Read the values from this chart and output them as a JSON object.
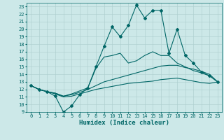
{
  "xlabel": "Humidex (Indice chaleur)",
  "bg_color": "#cce8e8",
  "grid_color": "#aacccc",
  "line_color": "#006666",
  "xlim": [
    -0.5,
    23.5
  ],
  "ylim": [
    9,
    23.5
  ],
  "xticks": [
    0,
    1,
    2,
    3,
    4,
    5,
    6,
    7,
    8,
    9,
    10,
    11,
    12,
    13,
    14,
    15,
    16,
    17,
    18,
    19,
    20,
    21,
    22,
    23
  ],
  "yticks": [
    9,
    10,
    11,
    12,
    13,
    14,
    15,
    16,
    17,
    18,
    19,
    20,
    21,
    22,
    23
  ],
  "s1": [
    12.5,
    12.0,
    11.7,
    11.1,
    9.0,
    9.8,
    11.3,
    12.2,
    15.0,
    17.7,
    20.3,
    19.0,
    20.5,
    23.2,
    21.5,
    22.5,
    22.5,
    16.8,
    20.0,
    16.5,
    15.5,
    14.3,
    13.8,
    13.0
  ],
  "s2": [
    12.5,
    12.0,
    11.7,
    11.5,
    11.1,
    11.4,
    11.8,
    12.2,
    14.8,
    16.3,
    16.5,
    16.8,
    15.5,
    15.8,
    16.5,
    17.0,
    16.5,
    16.5,
    15.5,
    15.0,
    14.5,
    14.2,
    13.8,
    13.0
  ],
  "s3": [
    12.5,
    12.0,
    11.7,
    11.5,
    11.1,
    11.3,
    11.6,
    12.0,
    12.5,
    13.0,
    13.3,
    13.6,
    13.9,
    14.2,
    14.5,
    14.8,
    15.1,
    15.2,
    15.2,
    14.9,
    14.7,
    14.4,
    14.0,
    13.0
  ],
  "s4": [
    12.5,
    12.0,
    11.7,
    11.4,
    11.0,
    11.1,
    11.4,
    11.7,
    12.0,
    12.2,
    12.4,
    12.6,
    12.8,
    12.9,
    13.0,
    13.1,
    13.3,
    13.4,
    13.5,
    13.3,
    13.1,
    12.9,
    12.8,
    13.0
  ],
  "label_fontsize": 6.5,
  "tick_fontsize": 5.0
}
